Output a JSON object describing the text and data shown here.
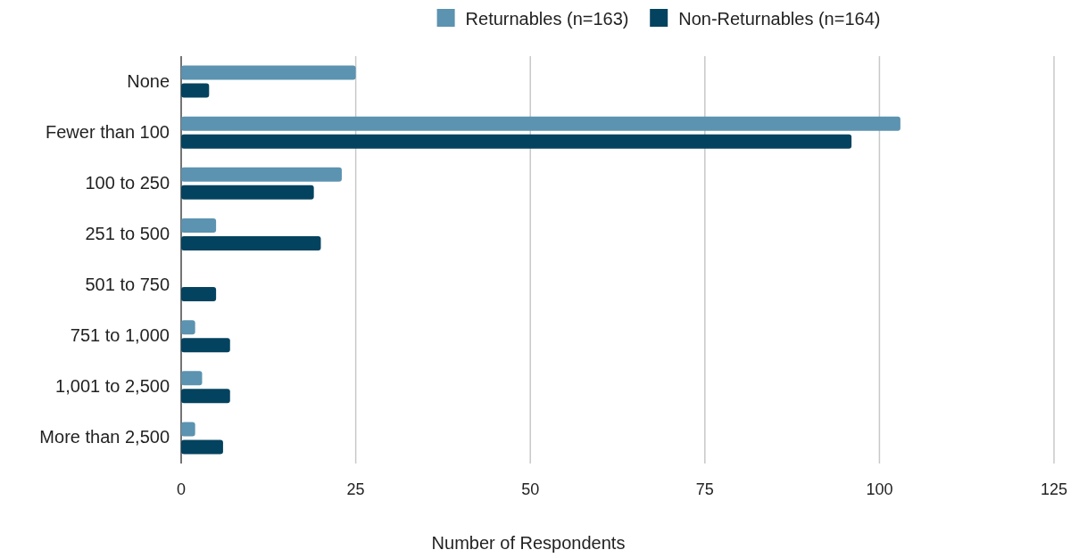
{
  "chart_data": {
    "type": "bar",
    "orientation": "horizontal",
    "xlabel": "Number of Respondents",
    "categories": [
      "None",
      "Fewer than 100",
      "100 to 250",
      "251 to 500",
      "501 to 750",
      "751 to 1,000",
      "1,001 to 2,500",
      "More than 2,500"
    ],
    "series": [
      {
        "name": "Returnables (n=163)",
        "color": "#5b93b0",
        "values": [
          25,
          103,
          23,
          5,
          0,
          2,
          3,
          2
        ]
      },
      {
        "name": "Non-Returnables (n=164)",
        "color": "#04435f",
        "values": [
          4,
          96,
          19,
          20,
          5,
          7,
          7,
          6
        ]
      }
    ],
    "xlim": [
      0,
      125
    ],
    "xticks": [
      0,
      25,
      50,
      75,
      100,
      125
    ],
    "grid": "x",
    "legend": "top"
  }
}
